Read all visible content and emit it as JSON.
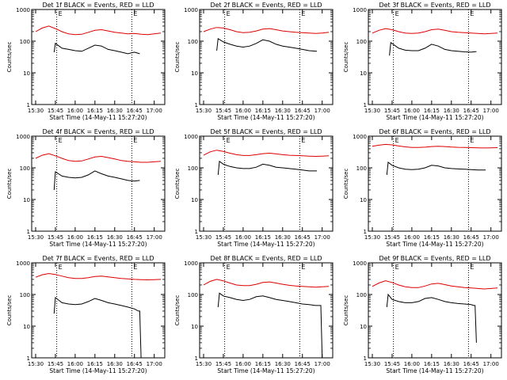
{
  "figure": {
    "xlabel": "Start Time (14-May-11 15:27:20)",
    "ylabel": "Counts/sec",
    "x_tick_labels": [
      "15:30",
      "15:45",
      "16:00",
      "16:15",
      "16:30",
      "16:45",
      "17:00"
    ],
    "y_tick_labels": [
      "1",
      "10",
      "100",
      "1000"
    ],
    "marker_labels": [
      "E",
      "E"
    ]
  },
  "colors": {
    "events": "#000000",
    "lld": "#dd0000",
    "axes": "#000000",
    "background": "#ffffff"
  },
  "chart_data": [
    {
      "type": "line",
      "title": "Det 1f BLACK = Events, RED = LLD",
      "xlabel": "Start Time (14-May-11 15:27:20)",
      "ylabel": "Counts/sec",
      "xlim": [
        "15:27",
        "17:08"
      ],
      "ylim": [
        1,
        1000
      ],
      "y_scale": "log",
      "vlines": [
        "15:46",
        "16:43"
      ],
      "series": [
        {
          "name": "Events",
          "color": "#000000",
          "x": [
            "15:44",
            "15:45",
            "15:50",
            "15:55",
            "16:00",
            "16:05",
            "16:10",
            "16:15",
            "16:20",
            "16:25",
            "16:30",
            "16:35",
            "16:40",
            "16:45",
            "16:49"
          ],
          "y": [
            45,
            85,
            60,
            55,
            50,
            48,
            60,
            75,
            70,
            55,
            50,
            45,
            40,
            45,
            40
          ]
        },
        {
          "name": "LLD",
          "color": "#dd0000",
          "x": [
            "15:30",
            "15:35",
            "15:40",
            "15:45",
            "15:50",
            "15:55",
            "16:00",
            "16:05",
            "16:10",
            "16:15",
            "16:20",
            "16:25",
            "16:30",
            "16:35",
            "16:40",
            "16:45",
            "16:50",
            "16:55",
            "17:00",
            "17:05"
          ],
          "y": [
            200,
            260,
            300,
            250,
            200,
            170,
            160,
            165,
            190,
            220,
            230,
            210,
            190,
            180,
            170,
            175,
            165,
            160,
            170,
            180
          ]
        }
      ]
    },
    {
      "type": "line",
      "title": "Det 2f BLACK = Events, RED = LLD",
      "xlabel": "Start Time (14-May-11 15:27:20)",
      "ylabel": "Counts/sec",
      "xlim": [
        "15:27",
        "17:08"
      ],
      "ylim": [
        1,
        1000
      ],
      "y_scale": "log",
      "vlines": [
        "15:46",
        "16:43"
      ],
      "series": [
        {
          "name": "Events",
          "color": "#000000",
          "x": [
            "15:40",
            "15:41",
            "15:45",
            "15:50",
            "15:55",
            "16:00",
            "16:05",
            "16:10",
            "16:15",
            "16:20",
            "16:25",
            "16:30",
            "16:35",
            "16:40",
            "16:45",
            "16:50",
            "16:56"
          ],
          "y": [
            50,
            120,
            95,
            80,
            70,
            65,
            70,
            85,
            110,
            100,
            80,
            70,
            65,
            60,
            55,
            50,
            48
          ]
        },
        {
          "name": "LLD",
          "color": "#dd0000",
          "x": [
            "15:30",
            "15:35",
            "15:40",
            "15:45",
            "15:50",
            "15:55",
            "16:00",
            "16:05",
            "16:10",
            "16:15",
            "16:20",
            "16:25",
            "16:30",
            "16:35",
            "16:40",
            "16:45",
            "16:50",
            "16:55",
            "17:00",
            "17:05"
          ],
          "y": [
            200,
            240,
            270,
            260,
            230,
            200,
            185,
            190,
            210,
            240,
            250,
            230,
            210,
            200,
            190,
            185,
            180,
            175,
            180,
            190
          ]
        }
      ]
    },
    {
      "type": "line",
      "title": "Det 3f BLACK = Events, RED = LLD",
      "xlabel": "Start Time (14-May-11 15:27:20)",
      "ylabel": "Counts/sec",
      "xlim": [
        "15:27",
        "17:08"
      ],
      "ylim": [
        1,
        1000
      ],
      "y_scale": "log",
      "vlines": [
        "15:46",
        "16:43"
      ],
      "series": [
        {
          "name": "Events",
          "color": "#000000",
          "x": [
            "15:43",
            "15:44",
            "15:50",
            "15:55",
            "16:00",
            "16:05",
            "16:10",
            "16:15",
            "16:20",
            "16:25",
            "16:30",
            "16:35",
            "16:40",
            "16:45",
            "16:49"
          ],
          "y": [
            35,
            90,
            60,
            52,
            50,
            50,
            60,
            80,
            70,
            55,
            50,
            48,
            46,
            45,
            47
          ]
        },
        {
          "name": "LLD",
          "color": "#dd0000",
          "x": [
            "15:30",
            "15:35",
            "15:40",
            "15:45",
            "15:50",
            "15:55",
            "16:00",
            "16:05",
            "16:10",
            "16:15",
            "16:20",
            "16:25",
            "16:30",
            "16:35",
            "16:40",
            "16:45",
            "16:50",
            "16:55",
            "17:00",
            "17:05"
          ],
          "y": [
            180,
            220,
            250,
            230,
            200,
            180,
            175,
            180,
            200,
            230,
            240,
            220,
            200,
            190,
            185,
            180,
            175,
            170,
            175,
            180
          ]
        }
      ]
    },
    {
      "type": "line",
      "title": "Det 4f BLACK = Events, RED = LLD",
      "xlabel": "Start Time (14-May-11 15:27:20)",
      "ylabel": "Counts/sec",
      "xlim": [
        "15:27",
        "17:08"
      ],
      "ylim": [
        1,
        1000
      ],
      "y_scale": "log",
      "vlines": [
        "15:46",
        "16:43"
      ],
      "series": [
        {
          "name": "Events",
          "color": "#000000",
          "x": [
            "15:44",
            "15:45",
            "15:50",
            "15:55",
            "16:00",
            "16:05",
            "16:10",
            "16:15",
            "16:20",
            "16:25",
            "16:30",
            "16:35",
            "16:40",
            "16:45",
            "16:49"
          ],
          "y": [
            20,
            75,
            55,
            50,
            48,
            50,
            60,
            80,
            65,
            55,
            50,
            45,
            40,
            38,
            40
          ]
        },
        {
          "name": "LLD",
          "color": "#dd0000",
          "x": [
            "15:30",
            "15:35",
            "15:40",
            "15:45",
            "15:50",
            "15:55",
            "16:00",
            "16:05",
            "16:10",
            "16:15",
            "16:20",
            "16:25",
            "16:30",
            "16:35",
            "16:40",
            "16:45",
            "16:50",
            "16:55",
            "17:00",
            "17:05"
          ],
          "y": [
            200,
            250,
            280,
            240,
            200,
            170,
            160,
            165,
            190,
            220,
            230,
            210,
            190,
            170,
            160,
            155,
            150,
            150,
            155,
            160
          ]
        }
      ]
    },
    {
      "type": "line",
      "title": "Det 5f BLACK = Events, RED = LLD",
      "xlabel": "Start Time (14-May-11 15:27:20)",
      "ylabel": "Counts/sec",
      "xlim": [
        "15:27",
        "17:08"
      ],
      "ylim": [
        1,
        1000
      ],
      "y_scale": "log",
      "vlines": [
        "15:46",
        "16:43"
      ],
      "series": [
        {
          "name": "Events",
          "color": "#000000",
          "x": [
            "15:41",
            "15:42",
            "15:45",
            "15:50",
            "15:55",
            "16:00",
            "16:05",
            "16:10",
            "16:15",
            "16:20",
            "16:25",
            "16:30",
            "16:35",
            "16:40",
            "16:45",
            "16:50",
            "16:56"
          ],
          "y": [
            60,
            160,
            130,
            110,
            100,
            95,
            95,
            105,
            130,
            120,
            105,
            100,
            95,
            90,
            85,
            80,
            80
          ]
        },
        {
          "name": "LLD",
          "color": "#dd0000",
          "x": [
            "15:30",
            "15:35",
            "15:40",
            "15:45",
            "15:50",
            "15:55",
            "16:00",
            "16:05",
            "16:10",
            "16:15",
            "16:20",
            "16:25",
            "16:30",
            "16:35",
            "16:40",
            "16:45",
            "16:50",
            "16:55",
            "17:00",
            "17:05"
          ],
          "y": [
            250,
            320,
            360,
            330,
            290,
            260,
            245,
            245,
            260,
            280,
            290,
            275,
            260,
            250,
            245,
            240,
            235,
            230,
            235,
            240
          ]
        }
      ]
    },
    {
      "type": "line",
      "title": "Det 6f BLACK = Events, RED = LLD",
      "xlabel": "Start Time (14-May-11 15:27:20)",
      "ylabel": "Counts/sec",
      "xlim": [
        "15:27",
        "17:08"
      ],
      "ylim": [
        1,
        1000
      ],
      "y_scale": "log",
      "vlines": [
        "15:46",
        "16:43"
      ],
      "series": [
        {
          "name": "Events",
          "color": "#000000",
          "x": [
            "15:41",
            "15:42",
            "15:45",
            "15:50",
            "15:55",
            "16:00",
            "16:05",
            "16:10",
            "16:15",
            "16:20",
            "16:25",
            "16:30",
            "16:35",
            "16:40",
            "16:45",
            "16:50",
            "16:56"
          ],
          "y": [
            60,
            150,
            120,
            100,
            90,
            88,
            90,
            100,
            120,
            115,
            100,
            95,
            92,
            90,
            88,
            85,
            85
          ]
        },
        {
          "name": "LLD",
          "color": "#dd0000",
          "x": [
            "15:30",
            "15:35",
            "15:40",
            "15:45",
            "15:50",
            "15:55",
            "16:00",
            "16:05",
            "16:10",
            "16:15",
            "16:20",
            "16:25",
            "16:30",
            "16:35",
            "16:40",
            "16:45",
            "16:50",
            "16:55",
            "17:00",
            "17:05"
          ],
          "y": [
            480,
            520,
            550,
            530,
            490,
            460,
            440,
            440,
            450,
            470,
            480,
            470,
            455,
            445,
            440,
            435,
            430,
            425,
            430,
            435
          ]
        }
      ]
    },
    {
      "type": "line",
      "title": "Det 7f BLACK = Events, RED = LLD",
      "xlabel": "Start Time (14-May-11 15:27:20)",
      "ylabel": "Counts/sec",
      "xlim": [
        "15:27",
        "17:08"
      ],
      "ylim": [
        1,
        1000
      ],
      "y_scale": "log",
      "vlines": [
        "15:46",
        "16:43"
      ],
      "series": [
        {
          "name": "Events",
          "color": "#000000",
          "x": [
            "15:44",
            "15:45",
            "15:50",
            "15:55",
            "16:00",
            "16:05",
            "16:10",
            "16:15",
            "16:20",
            "16:25",
            "16:30",
            "16:35",
            "16:40",
            "16:45",
            "16:48",
            "16:49",
            "16:50"
          ],
          "y": [
            25,
            80,
            55,
            50,
            48,
            50,
            60,
            75,
            65,
            55,
            50,
            45,
            40,
            35,
            30,
            30,
            1
          ]
        },
        {
          "name": "LLD",
          "color": "#dd0000",
          "x": [
            "15:30",
            "15:35",
            "15:40",
            "15:45",
            "15:50",
            "15:55",
            "16:00",
            "16:05",
            "16:10",
            "16:15",
            "16:20",
            "16:25",
            "16:30",
            "16:35",
            "16:40",
            "16:45",
            "16:50",
            "16:55",
            "17:00",
            "17:05"
          ],
          "y": [
            350,
            420,
            460,
            430,
            380,
            340,
            320,
            320,
            340,
            370,
            380,
            360,
            340,
            320,
            310,
            300,
            295,
            290,
            295,
            300
          ]
        }
      ]
    },
    {
      "type": "line",
      "title": "Det 8f BLACK = Events, RED = LLD",
      "xlabel": "Start Time (14-May-11 15:27:20)",
      "ylabel": "Counts/sec",
      "xlim": [
        "15:27",
        "17:08"
      ],
      "ylim": [
        1,
        1000
      ],
      "y_scale": "log",
      "vlines": [
        "15:46",
        "16:43"
      ],
      "series": [
        {
          "name": "Events",
          "color": "#000000",
          "x": [
            "15:41",
            "15:42",
            "15:45",
            "15:50",
            "15:55",
            "16:00",
            "16:05",
            "16:10",
            "16:15",
            "16:20",
            "16:25",
            "16:30",
            "16:35",
            "16:40",
            "16:45",
            "16:50",
            "16:55",
            "16:59",
            "17:00"
          ],
          "y": [
            40,
            110,
            90,
            80,
            70,
            65,
            70,
            85,
            90,
            80,
            70,
            65,
            60,
            55,
            50,
            48,
            45,
            45,
            1
          ]
        },
        {
          "name": "LLD",
          "color": "#dd0000",
          "x": [
            "15:30",
            "15:35",
            "15:40",
            "15:45",
            "15:50",
            "15:55",
            "16:00",
            "16:05",
            "16:10",
            "16:15",
            "16:20",
            "16:25",
            "16:30",
            "16:35",
            "16:40",
            "16:45",
            "16:50",
            "16:55",
            "17:00",
            "17:05"
          ],
          "y": [
            200,
            260,
            300,
            270,
            230,
            200,
            190,
            190,
            210,
            240,
            250,
            230,
            210,
            195,
            185,
            180,
            175,
            170,
            175,
            180
          ]
        }
      ]
    },
    {
      "type": "line",
      "title": "Det 9f BLACK = Events, RED = LLD",
      "xlabel": "Start Time (14-May-11 15:27:20)",
      "ylabel": "Counts/sec",
      "xlim": [
        "15:27",
        "17:08"
      ],
      "ylim": [
        1,
        1000
      ],
      "y_scale": "log",
      "vlines": [
        "15:46",
        "16:43"
      ],
      "series": [
        {
          "name": "Events",
          "color": "#000000",
          "x": [
            "15:41",
            "15:42",
            "15:45",
            "15:50",
            "15:55",
            "16:00",
            "16:05",
            "16:10",
            "16:15",
            "16:20",
            "16:25",
            "16:30",
            "16:35",
            "16:40",
            "16:45",
            "16:47",
            "16:48",
            "16:49"
          ],
          "y": [
            40,
            100,
            70,
            60,
            55,
            55,
            60,
            75,
            80,
            70,
            60,
            55,
            52,
            50,
            48,
            45,
            45,
            3
          ]
        },
        {
          "name": "LLD",
          "color": "#dd0000",
          "x": [
            "15:30",
            "15:35",
            "15:40",
            "15:45",
            "15:50",
            "15:55",
            "16:00",
            "16:05",
            "16:10",
            "16:15",
            "16:20",
            "16:25",
            "16:30",
            "16:35",
            "16:40",
            "16:45",
            "16:50",
            "16:55",
            "17:00",
            "17:05"
          ],
          "y": [
            180,
            230,
            270,
            240,
            200,
            175,
            165,
            165,
            185,
            215,
            225,
            205,
            185,
            175,
            165,
            160,
            155,
            150,
            155,
            160
          ]
        }
      ]
    }
  ]
}
